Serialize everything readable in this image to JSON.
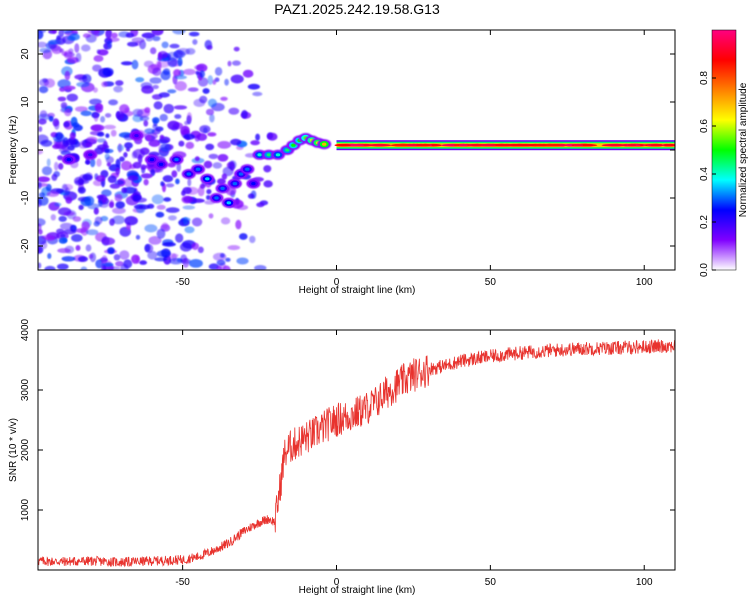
{
  "title": "PAZ1.2025.242.19.58.G13",
  "chart_data": [
    {
      "type": "heatmap",
      "name": "spectrogram",
      "xlabel": "Height of straight line (km)",
      "ylabel": "Frequency (Hz)",
      "xlim": [
        -97,
        110
      ],
      "ylim": [
        -25,
        25
      ],
      "xticks": [
        {
          "value": -50,
          "label": "-50"
        },
        {
          "value": 0,
          "label": "0"
        },
        {
          "value": 50,
          "label": "50"
        },
        {
          "value": 100,
          "label": "100"
        }
      ],
      "yticks": [
        {
          "value": 20,
          "label": "20"
        },
        {
          "value": 10,
          "label": "10"
        },
        {
          "value": 0,
          "label": "0"
        },
        {
          "value": -10,
          "label": "-10"
        },
        {
          "value": -20,
          "label": "-20"
        }
      ],
      "signal_track": [
        {
          "x": -87,
          "y": -2,
          "amp": 0.25
        },
        {
          "x": -80,
          "y": -1,
          "amp": 0.2
        },
        {
          "x": -65,
          "y": 3,
          "amp": 0.2
        },
        {
          "x": -60,
          "y": -2,
          "amp": 0.25
        },
        {
          "x": -57,
          "y": -3,
          "amp": 0.25
        },
        {
          "x": -52,
          "y": -2,
          "amp": 0.3
        },
        {
          "x": -48,
          "y": -5,
          "amp": 0.3
        },
        {
          "x": -45,
          "y": -4,
          "amp": 0.3
        },
        {
          "x": -42,
          "y": -6,
          "amp": 0.35
        },
        {
          "x": -39,
          "y": -10,
          "amp": 0.3
        },
        {
          "x": -37,
          "y": -8,
          "amp": 0.3
        },
        {
          "x": -35,
          "y": -11,
          "amp": 0.35
        },
        {
          "x": -33,
          "y": -7,
          "amp": 0.3
        },
        {
          "x": -31,
          "y": -5,
          "amp": 0.3
        },
        {
          "x": -29,
          "y": -4,
          "amp": 0.3
        },
        {
          "x": -27,
          "y": -7,
          "amp": 0.25
        },
        {
          "x": -25,
          "y": -1,
          "amp": 0.4
        },
        {
          "x": -22,
          "y": -1,
          "amp": 0.45
        },
        {
          "x": -19,
          "y": -1,
          "amp": 0.4
        },
        {
          "x": -16,
          "y": 0,
          "amp": 0.45
        },
        {
          "x": -14,
          "y": 1,
          "amp": 0.5
        },
        {
          "x": -12,
          "y": 2,
          "amp": 0.5
        },
        {
          "x": -10,
          "y": 2.5,
          "amp": 0.55
        },
        {
          "x": -8,
          "y": 2,
          "amp": 0.6
        },
        {
          "x": -6,
          "y": 1.5,
          "amp": 0.65
        },
        {
          "x": -4,
          "y": 1.2,
          "amp": 0.7
        },
        {
          "x": 0,
          "y": 1,
          "amp": 0.85
        },
        {
          "x": 5,
          "y": 1,
          "amp": 0.9
        },
        {
          "x": 10,
          "y": 1,
          "amp": 0.9
        },
        {
          "x": 20,
          "y": 1,
          "amp": 0.92
        },
        {
          "x": 30,
          "y": 1,
          "amp": 0.93
        },
        {
          "x": 40,
          "y": 1,
          "amp": 0.94
        },
        {
          "x": 50,
          "y": 1,
          "amp": 0.95
        },
        {
          "x": 60,
          "y": 1,
          "amp": 0.95
        },
        {
          "x": 70,
          "y": 1,
          "amp": 0.96
        },
        {
          "x": 80,
          "y": 1,
          "amp": 0.96
        },
        {
          "x": 90,
          "y": 1,
          "amp": 0.97
        },
        {
          "x": 100,
          "y": 1,
          "amp": 0.97
        },
        {
          "x": 110,
          "y": 1,
          "amp": 0.97
        }
      ],
      "noise_region": {
        "x_min": -97,
        "x_max": -22,
        "y_min": -25,
        "y_max": 25,
        "amp_max": 0.2
      },
      "colorbar": {
        "label": "Normalized spectral amplitude",
        "range": [
          0,
          1
        ],
        "ticks": [
          {
            "value": 0.0,
            "label": "0.0"
          },
          {
            "value": 0.2,
            "label": "0.2"
          },
          {
            "value": 0.4,
            "label": "0.4"
          },
          {
            "value": 0.6,
            "label": "0.6"
          },
          {
            "value": 0.8,
            "label": "0.8"
          }
        ],
        "colors": [
          "#ffffff",
          "#8000ff",
          "#0000ff",
          "#00ffff",
          "#00ff00",
          "#ffff00",
          "#ff8000",
          "#ff0000",
          "#ff0080"
        ]
      }
    },
    {
      "type": "line",
      "name": "snr",
      "xlabel": "Height of straight line (km)",
      "ylabel": "SNR (10 * v/v)",
      "xlim": [
        -97,
        110
      ],
      "ylim": [
        0,
        4000
      ],
      "xticks": [
        {
          "value": -50,
          "label": "-50"
        },
        {
          "value": 0,
          "label": "0"
        },
        {
          "value": 50,
          "label": "50"
        },
        {
          "value": 100,
          "label": "100"
        }
      ],
      "yticks": [
        {
          "value": 1000,
          "label": "1000"
        },
        {
          "value": 2000,
          "label": "2000"
        },
        {
          "value": 3000,
          "label": "3000"
        },
        {
          "value": 4000,
          "label": "4000"
        }
      ],
      "color": "#e8332e",
      "noise_amplitude": 90,
      "x": [
        -97,
        -90,
        -80,
        -70,
        -60,
        -50,
        -45,
        -40,
        -35,
        -30,
        -25,
        -22,
        -20,
        -18,
        -17,
        -16,
        -15,
        -12,
        -10,
        -8,
        -5,
        -2,
        0,
        3,
        6,
        10,
        13,
        16,
        20,
        25,
        30,
        35,
        40,
        45,
        50,
        55,
        60,
        70,
        80,
        90,
        100,
        110
      ],
      "y": [
        150,
        140,
        150,
        130,
        150,
        170,
        220,
        320,
        450,
        650,
        800,
        850,
        800,
        1500,
        1900,
        2000,
        2050,
        2150,
        2200,
        2250,
        2350,
        2450,
        2500,
        2550,
        2600,
        2700,
        2800,
        2950,
        3100,
        3250,
        3350,
        3400,
        3480,
        3520,
        3560,
        3590,
        3620,
        3660,
        3690,
        3700,
        3720,
        3740
      ]
    }
  ]
}
